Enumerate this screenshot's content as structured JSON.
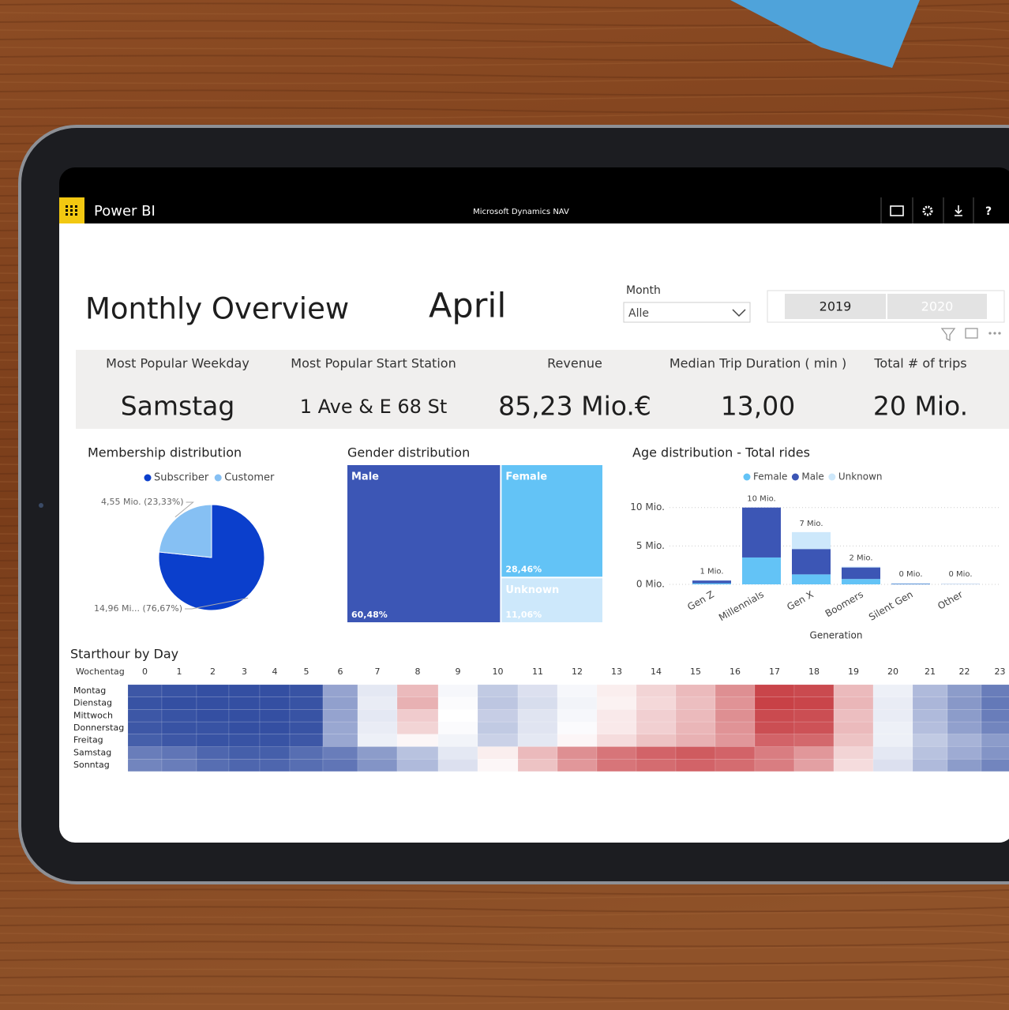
{
  "app": {
    "title": "Power BI",
    "workspace": "Microsoft Dynamics NAV",
    "help": "?"
  },
  "report": {
    "title": "Monthly Overview",
    "selected_month": "April",
    "slicer_label": "Month",
    "slicer_value": "Alle",
    "years": [
      "2019",
      "2020"
    ]
  },
  "kpis": [
    {
      "label": "Most Popular Weekday",
      "value": "Samstag"
    },
    {
      "label": "Most Popular Start Station",
      "value": "1 Ave & E 68 St"
    },
    {
      "label": "Revenue",
      "value": "85,23 Mio.€"
    },
    {
      "label": "Median Trip Duration ( min )",
      "value": "13,00"
    },
    {
      "label": "Total # of trips",
      "value": "20 Mio."
    }
  ],
  "chart_data": [
    {
      "type": "pie",
      "title": "Membership distribution",
      "categories": [
        "Subscriber",
        "Customer"
      ],
      "values": [
        14960000,
        4550000
      ],
      "value_labels": [
        "14,96 Mi... (76,67%)",
        "4,55 Mio. (23,33%)"
      ],
      "colors": [
        "#0b3fcc",
        "#86c0f3"
      ]
    },
    {
      "type": "treemap",
      "title": "Gender distribution",
      "categories": [
        "Male",
        "Female",
        "Unknown"
      ],
      "values": [
        60.48,
        28.46,
        11.06
      ],
      "value_labels": [
        "60,48%",
        "28,46%",
        "11,06%"
      ],
      "colors": [
        "#3c56b5",
        "#63c3f6",
        "#cde8fb"
      ]
    },
    {
      "type": "stacked_bar",
      "title": "Age distribution - Total rides",
      "x_label": "Generation",
      "categories": [
        "Gen Z",
        "Millennials",
        "Gen X",
        "Boomers",
        "Silent Gen",
        "Other"
      ],
      "series": [
        {
          "name": "Female",
          "color": "#63c3f6",
          "values": [
            150000,
            3500000,
            1300000,
            700000,
            50000,
            20000
          ]
        },
        {
          "name": "Male",
          "color": "#3c56b5",
          "values": [
            350000,
            6500000,
            3300000,
            1500000,
            50000,
            20000
          ]
        },
        {
          "name": "Unknown",
          "color": "#cde8fb",
          "values": [
            50000,
            0,
            2200000,
            100000,
            0,
            10000
          ]
        }
      ],
      "total_labels": [
        "1 Mio.",
        "10 Mio.",
        "7 Mio.",
        "2 Mio.",
        "0 Mio.",
        "0 Mio."
      ],
      "ylim": [
        0,
        11000000
      ],
      "yticks": [
        {
          "value": 0,
          "label": "0 Mio."
        },
        {
          "value": 5000000,
          "label": "5 Mio."
        },
        {
          "value": 10000000,
          "label": "10 Mio."
        }
      ],
      "grid": true
    },
    {
      "type": "heatmap",
      "title": "Starthour by Day",
      "row_header": "Wochentag",
      "columns": [
        0,
        1,
        2,
        3,
        4,
        5,
        6,
        7,
        8,
        9,
        10,
        11,
        12,
        13,
        14,
        15,
        16,
        17,
        18,
        19,
        20,
        21,
        22,
        23
      ],
      "rows": [
        "Montag",
        "Dienstag",
        "Mittwoch",
        "Donnerstag",
        "Freitag",
        "Samstag",
        "Sonntag"
      ],
      "values": [
        [
          6,
          5,
          4,
          4,
          4,
          5,
          26,
          44,
          66,
          48,
          36,
          42,
          48,
          54,
          60,
          66,
          76,
          93,
          92,
          66,
          46,
          32,
          24,
          16
        ],
        [
          5,
          4,
          4,
          4,
          4,
          5,
          25,
          45,
          68,
          49,
          35,
          41,
          47,
          53,
          59,
          65,
          75,
          94,
          93,
          67,
          45,
          31,
          23,
          15
        ],
        [
          6,
          5,
          4,
          4,
          4,
          5,
          26,
          44,
          62,
          50,
          37,
          43,
          48,
          55,
          61,
          66,
          76,
          92,
          91,
          65,
          45,
          32,
          24,
          16
        ],
        [
          6,
          5,
          5,
          4,
          4,
          5,
          27,
          45,
          60,
          49,
          36,
          43,
          49,
          55,
          61,
          67,
          75,
          91,
          90,
          66,
          46,
          33,
          25,
          18
        ],
        [
          8,
          6,
          5,
          5,
          5,
          6,
          27,
          46,
          52,
          47,
          38,
          44,
          52,
          58,
          64,
          68,
          74,
          86,
          85,
          64,
          46,
          36,
          30,
          24
        ],
        [
          16,
          14,
          10,
          8,
          8,
          12,
          16,
          24,
          34,
          44,
          54,
          66,
          76,
          82,
          86,
          88,
          86,
          80,
          74,
          60,
          44,
          34,
          28,
          22
        ],
        [
          18,
          16,
          12,
          10,
          10,
          12,
          14,
          22,
          32,
          42,
          52,
          64,
          74,
          82,
          84,
          86,
          84,
          80,
          72,
          58,
          42,
          32,
          24,
          18
        ]
      ],
      "zlim": [
        0,
        100
      ],
      "colorscale": [
        "#22409a",
        "#ffffff",
        "#c0272d"
      ]
    }
  ]
}
